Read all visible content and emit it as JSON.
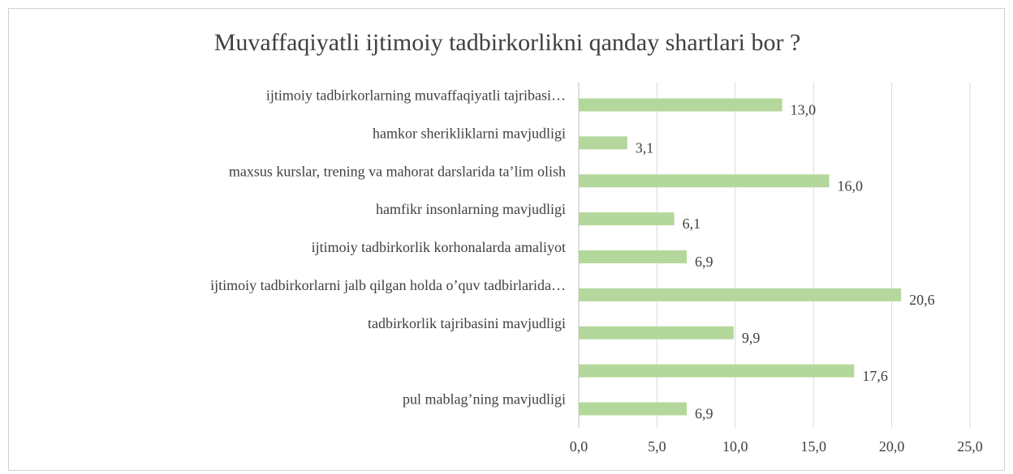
{
  "chart_data": {
    "type": "barh",
    "title": "Muvaffaqiyatli ijtimoiy tadbirkorlikni qanday shartlari bor ?",
    "categories": [
      "ijtimoiy tadbirkorlarning muvaffaqiyatli tajribasi…",
      "hamkor sherikliklarni mavjudligi",
      "maxsus kurslar, trening va mahorat darslarida ta’lim olish",
      "hamfikr insonlarning mavjudligi",
      "ijtimoiy tadbirkorlik korhonalarda amaliyot",
      "ijtimoiy tadbirkorlarni jalb qilgan holda o’quv tadbirlarida…",
      "tadbirkorlik tajribasini mavjudligi",
      null,
      "pul mablag’ning mavjudligi"
    ],
    "values": [
      13.0,
      3.1,
      16.0,
      6.1,
      6.9,
      20.6,
      9.9,
      17.6,
      6.9
    ],
    "value_labels": [
      "13,0",
      "3,1",
      "16,0",
      "6,1",
      "6,9",
      "20,6",
      "9,9",
      "17,6",
      "6,9"
    ],
    "color": "#b4d79b",
    "xlim": [
      0,
      25
    ],
    "xticks": [
      {
        "value": 0,
        "label": "0,0"
      },
      {
        "value": 5,
        "label": "5,0"
      },
      {
        "value": 10,
        "label": "10,0"
      },
      {
        "value": 15,
        "label": "15,0"
      },
      {
        "value": 20,
        "label": "20,0"
      },
      {
        "value": 25,
        "label": "25,0"
      }
    ],
    "grid": true
  }
}
